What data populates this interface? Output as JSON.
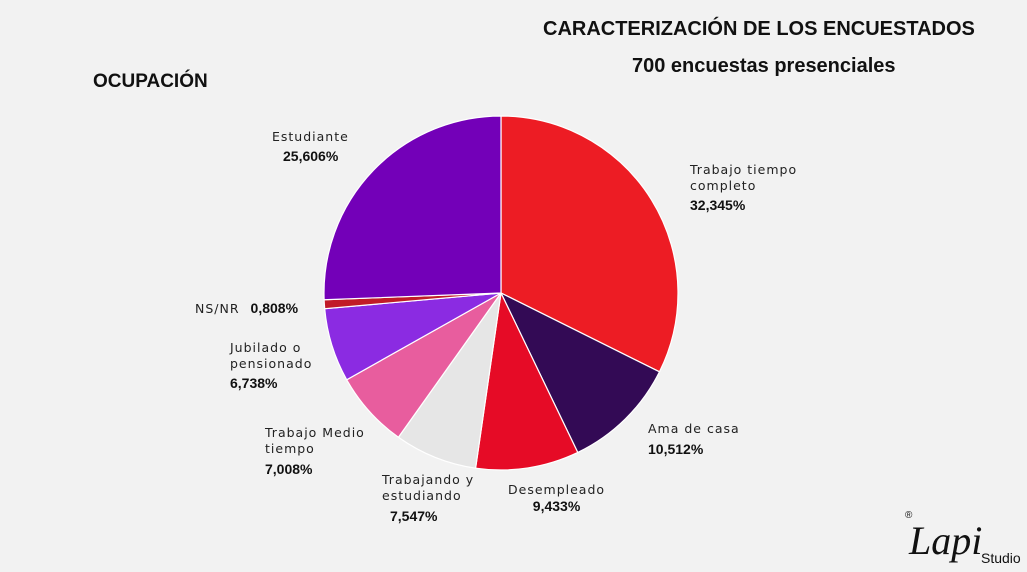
{
  "header": {
    "title": "CARACTERIZACIÓN DE LOS ENCUESTADOS",
    "subtitle": "700 encuestas presenciales",
    "section": "OCUPACIÓN"
  },
  "chart_data": {
    "type": "pie",
    "title": "OCUPACIÓN",
    "slices": [
      {
        "name": "Trabajo tiempo completo",
        "label": "Trabajo tiempo\ncompleto",
        "value": 32.345,
        "pct": "32,345%",
        "color": "#ed1c24"
      },
      {
        "name": "Ama de casa",
        "label": "Ama de casa",
        "value": 10.512,
        "pct": "10,512%",
        "color": "#330a55"
      },
      {
        "name": "Desempleado",
        "label": "Desempleado",
        "value": 9.433,
        "pct": "9,433%",
        "color": "#e60b26"
      },
      {
        "name": "Trabajando y estudiando",
        "label": "Trabajando y\nestudiando",
        "value": 7.547,
        "pct": "7,547%",
        "color": "#e6e6e6"
      },
      {
        "name": "Trabajo Medio tiempo",
        "label": "Trabajo Medio\ntiempo",
        "value": 7.008,
        "pct": "7,008%",
        "color": "#e85d9e"
      },
      {
        "name": "Jubilado o pensionado",
        "label": "Jubilado o\npensionado",
        "value": 6.738,
        "pct": "6,738%",
        "color": "#8b2be2"
      },
      {
        "name": "NS/NR",
        "label": "NS/NR",
        "value": 0.808,
        "pct": "0,808%",
        "color": "#c11b28"
      },
      {
        "name": "Estudiante",
        "label": "Estudiante",
        "value": 25.606,
        "pct": "25,606%",
        "color": "#7300b8"
      }
    ]
  },
  "logo": {
    "text_main": "Lapi",
    "text_tail": "Studio",
    "mark": "®"
  }
}
